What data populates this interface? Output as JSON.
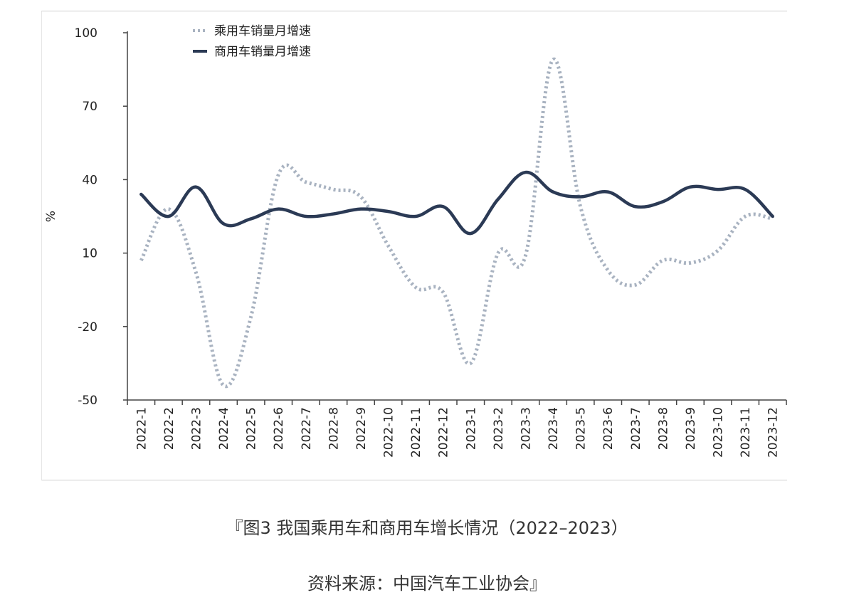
{
  "caption": {
    "title": "『图3 我国乘用车和商用车增长情况（2022–2023）",
    "source": "资料来源：中国汽车工业协会』"
  },
  "chart_data": {
    "type": "line",
    "title": "",
    "xlabel": "",
    "ylabel": "%",
    "ylim": [
      -50,
      100
    ],
    "yticks": [
      100,
      70,
      40,
      10,
      -20,
      -50
    ],
    "grid": false,
    "legend_position": "top-left",
    "categories": [
      "2022-1",
      "2022-2",
      "2022-3",
      "2022-4",
      "2022-5",
      "2022-6",
      "2022-7",
      "2022-8",
      "2022-9",
      "2022-10",
      "2022-11",
      "2022-12",
      "2023-1",
      "2023-2",
      "2023-3",
      "2023-4",
      "2023-5",
      "2023-6",
      "2023-7",
      "2023-8",
      "2023-9",
      "2023-10",
      "2023-11",
      "2023-12"
    ],
    "series": [
      {
        "name": "乘用车销量月增速",
        "style": "dotted",
        "color": "#a9b3c1",
        "values": [
          7,
          28,
          2,
          -44,
          -16,
          42,
          39,
          36,
          33,
          13,
          -4,
          -6,
          -35,
          10,
          9,
          89,
          29,
          3,
          -3,
          7,
          6,
          11,
          25,
          24
        ]
      },
      {
        "name": "商用车销量月增速",
        "style": "solid",
        "color": "#2b3a55",
        "values": [
          34,
          25,
          37,
          22,
          24,
          28,
          25,
          26,
          28,
          27,
          25,
          29,
          18,
          32,
          43,
          35,
          33,
          35,
          29,
          31,
          37,
          36,
          36,
          25
        ]
      }
    ]
  }
}
